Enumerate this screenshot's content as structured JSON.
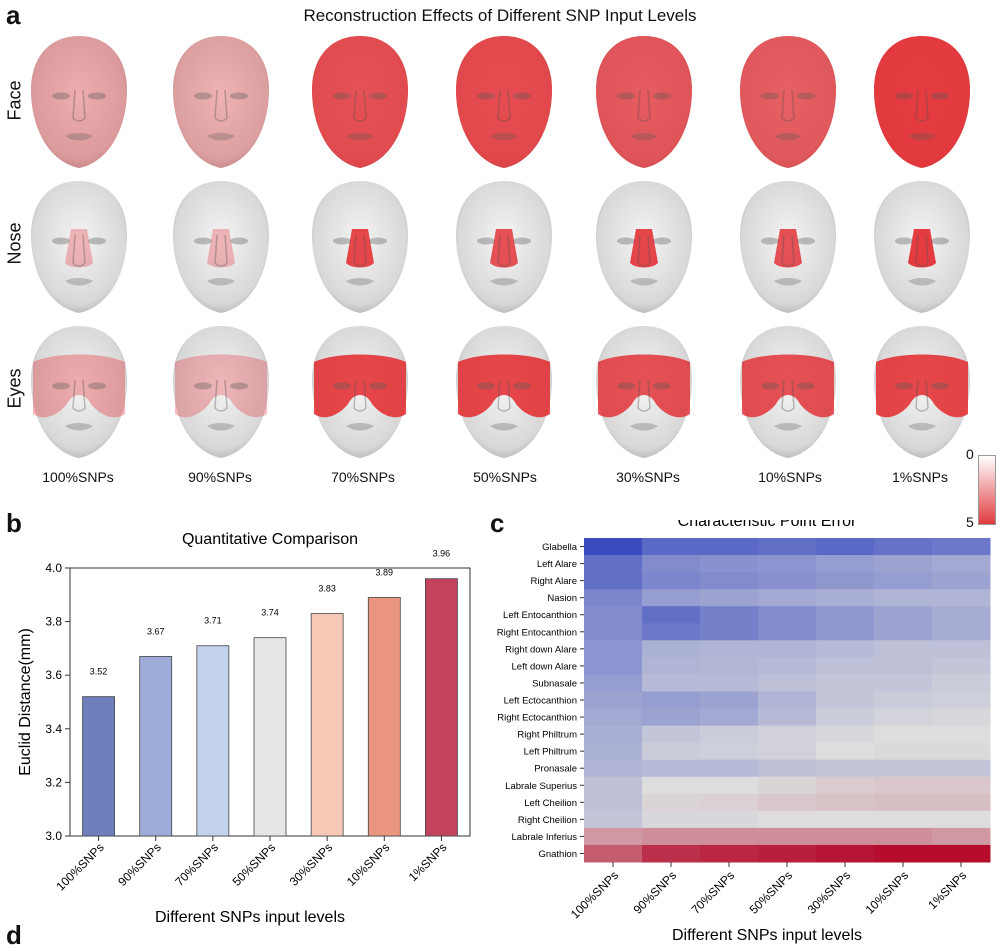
{
  "panels": {
    "a": "a",
    "b": "b",
    "c": "c",
    "d": "d"
  },
  "top": {
    "title": "Reconstruction Effects of Different SNP Input Levels",
    "row_labels": [
      "Face",
      "Nose",
      "Eyes"
    ],
    "column_labels": [
      "100%SNPs",
      "90%SNPs",
      "70%SNPs",
      "50%SNPs",
      "30%SNPs",
      "10%SNPs",
      "1%SNPs"
    ],
    "intensity": {
      "Face": [
        0.35,
        0.32,
        0.8,
        0.82,
        0.75,
        0.72,
        0.9
      ],
      "Nose": [
        0.3,
        0.3,
        0.85,
        0.8,
        0.85,
        0.8,
        0.9
      ],
      "Eyes": [
        0.35,
        0.3,
        0.85,
        0.85,
        0.8,
        0.8,
        0.85
      ]
    },
    "colorbar": {
      "min_label": "0",
      "max_label": "5",
      "low_color": "#ffffff",
      "high_color": "#e03a3e"
    }
  },
  "chart_data": [
    {
      "type": "bar",
      "title": "Quantitative Comparison",
      "categories": [
        "100%SNPs",
        "90%SNPs",
        "70%SNPs",
        "50%SNPs",
        "30%SNPs",
        "10%SNPs",
        "1%SNPs"
      ],
      "values": [
        3.52,
        3.67,
        3.71,
        3.74,
        3.83,
        3.89,
        3.96
      ],
      "value_labels": [
        "3.52",
        "3.67",
        "3.71",
        "3.74",
        "3.83",
        "3.89",
        "3.96"
      ],
      "colors": [
        "#6f7fbc",
        "#9eadd8",
        "#c3d2ec",
        "#e6e6e6",
        "#f5c9b6",
        "#e99580",
        "#c4435c"
      ],
      "xlabel": "Different SNPs input levels",
      "ylabel": "Euclid Distance(mm)",
      "ylim": [
        3.0,
        4.0
      ],
      "yticks": [
        "3.0",
        "3.2",
        "3.4",
        "3.6",
        "3.8",
        "4.0"
      ]
    },
    {
      "type": "heatmap",
      "title": "Characteristic Point Error",
      "xlabel": "Different SNPs input levels",
      "columns": [
        "100%SNPs",
        "90%SNPs",
        "70%SNPs",
        "50%SNPs",
        "30%SNPs",
        "10%SNPs",
        "1%SNPs"
      ],
      "rows": [
        "Glabella",
        "Left Alare",
        "Right Alare",
        "Nasion",
        "Left Entocanthion",
        "Right Entocanthion",
        "Right down Alare",
        "Left down Alare",
        "Subnasale",
        "Left Ectocanthion",
        "Right Ectocanthion",
        "Right Philtrum",
        "Left Philtrum",
        "Pronasale",
        "Labrale Superius",
        "Left Cheilion",
        "Right Cheilion",
        "Labrale Inferius",
        "Gnathion"
      ],
      "values": [
        [
          0.0,
          0.1,
          0.1,
          0.12,
          0.1,
          0.13,
          0.15
        ],
        [
          0.12,
          0.22,
          0.24,
          0.25,
          0.28,
          0.3,
          0.32
        ],
        [
          0.12,
          0.2,
          0.22,
          0.24,
          0.26,
          0.28,
          0.3
        ],
        [
          0.2,
          0.28,
          0.3,
          0.32,
          0.34,
          0.36,
          0.36
        ],
        [
          0.22,
          0.12,
          0.18,
          0.22,
          0.26,
          0.3,
          0.33
        ],
        [
          0.22,
          0.15,
          0.18,
          0.22,
          0.26,
          0.3,
          0.33
        ],
        [
          0.25,
          0.35,
          0.36,
          0.36,
          0.38,
          0.4,
          0.4
        ],
        [
          0.25,
          0.36,
          0.37,
          0.38,
          0.4,
          0.4,
          0.42
        ],
        [
          0.28,
          0.38,
          0.38,
          0.4,
          0.42,
          0.42,
          0.44
        ],
        [
          0.3,
          0.28,
          0.3,
          0.36,
          0.42,
          0.44,
          0.45
        ],
        [
          0.32,
          0.3,
          0.32,
          0.38,
          0.44,
          0.47,
          0.48
        ],
        [
          0.34,
          0.42,
          0.44,
          0.46,
          0.48,
          0.5,
          0.5
        ],
        [
          0.35,
          0.44,
          0.45,
          0.46,
          0.5,
          0.51,
          0.51
        ],
        [
          0.36,
          0.38,
          0.38,
          0.4,
          0.42,
          0.42,
          0.42
        ],
        [
          0.4,
          0.5,
          0.5,
          0.52,
          0.54,
          0.55,
          0.55
        ],
        [
          0.4,
          0.52,
          0.53,
          0.55,
          0.56,
          0.57,
          0.57
        ],
        [
          0.42,
          0.48,
          0.48,
          0.5,
          0.5,
          0.5,
          0.5
        ],
        [
          0.66,
          0.68,
          0.68,
          0.68,
          0.68,
          0.68,
          0.66
        ],
        [
          0.8,
          0.9,
          0.92,
          0.94,
          0.96,
          0.98,
          0.98
        ]
      ]
    }
  ]
}
